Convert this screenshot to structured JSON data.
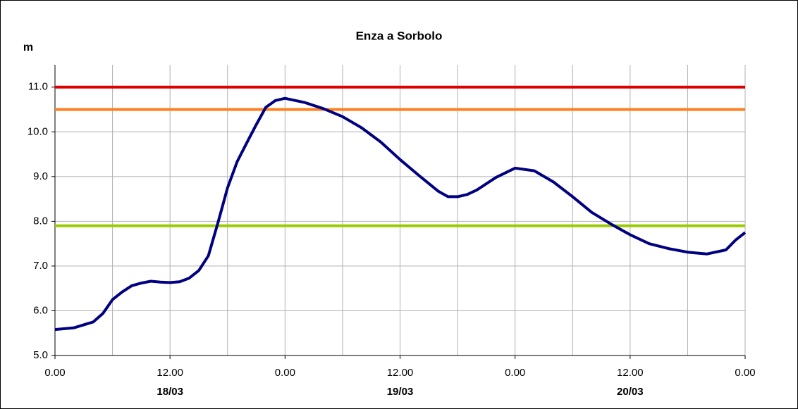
{
  "chart_data": {
    "type": "line",
    "title": "Enza a Sorbolo",
    "y_label": "m",
    "x": [
      0,
      2,
      4,
      5,
      6,
      7,
      8,
      9,
      10,
      11,
      12,
      13,
      14,
      15,
      16,
      17,
      18,
      19,
      20,
      21,
      22,
      23,
      24,
      26,
      28,
      30,
      32,
      34,
      36,
      38,
      40,
      41,
      42,
      43,
      44,
      46,
      48,
      50,
      52,
      54,
      56,
      58,
      60,
      62,
      64,
      66,
      68,
      70,
      71,
      72
    ],
    "values": [
      5.58,
      5.62,
      5.75,
      5.94,
      6.25,
      6.42,
      6.56,
      6.62,
      6.66,
      6.64,
      6.63,
      6.65,
      6.73,
      6.9,
      7.23,
      7.97,
      8.75,
      9.33,
      9.75,
      10.16,
      10.55,
      10.7,
      10.75,
      10.66,
      10.52,
      10.34,
      10.09,
      9.77,
      9.38,
      9.02,
      8.67,
      8.55,
      8.55,
      8.6,
      8.7,
      8.98,
      9.19,
      9.13,
      8.88,
      8.55,
      8.2,
      7.94,
      7.7,
      7.5,
      7.39,
      7.31,
      7.27,
      7.36,
      7.58,
      7.75
    ],
    "color": "#000080",
    "xlim": [
      0,
      72
    ],
    "xticks": [
      {
        "value": 0,
        "label": "0.00"
      },
      {
        "value": 12,
        "label": "12.00"
      },
      {
        "value": 24,
        "label": "0.00"
      },
      {
        "value": 36,
        "label": "12.00"
      },
      {
        "value": 48,
        "label": "0.00"
      },
      {
        "value": 60,
        "label": "12.00"
      },
      {
        "value": 72,
        "label": "0.00"
      }
    ],
    "xminor_ticks": [
      6,
      18,
      30,
      42,
      54,
      66
    ],
    "x_group_labels": [
      {
        "value": 12,
        "label": "18/03"
      },
      {
        "value": 36,
        "label": "19/03"
      },
      {
        "value": 60,
        "label": "20/03"
      }
    ],
    "ylim": [
      5,
      11.5
    ],
    "yticks": [
      {
        "value": 5,
        "label": "5.0"
      },
      {
        "value": 6,
        "label": "6.0"
      },
      {
        "value": 7,
        "label": "7.0"
      },
      {
        "value": 8,
        "label": "8.0"
      },
      {
        "value": 9,
        "label": "9.0"
      },
      {
        "value": 10,
        "label": "10.0"
      },
      {
        "value": 11,
        "label": "11.0"
      }
    ],
    "hlines": [
      {
        "value": 11,
        "color": "#e00000"
      },
      {
        "value": 10.5,
        "color": "#ff7f1e"
      },
      {
        "value": 7.9,
        "color": "#99cc00"
      }
    ],
    "grid": true
  }
}
